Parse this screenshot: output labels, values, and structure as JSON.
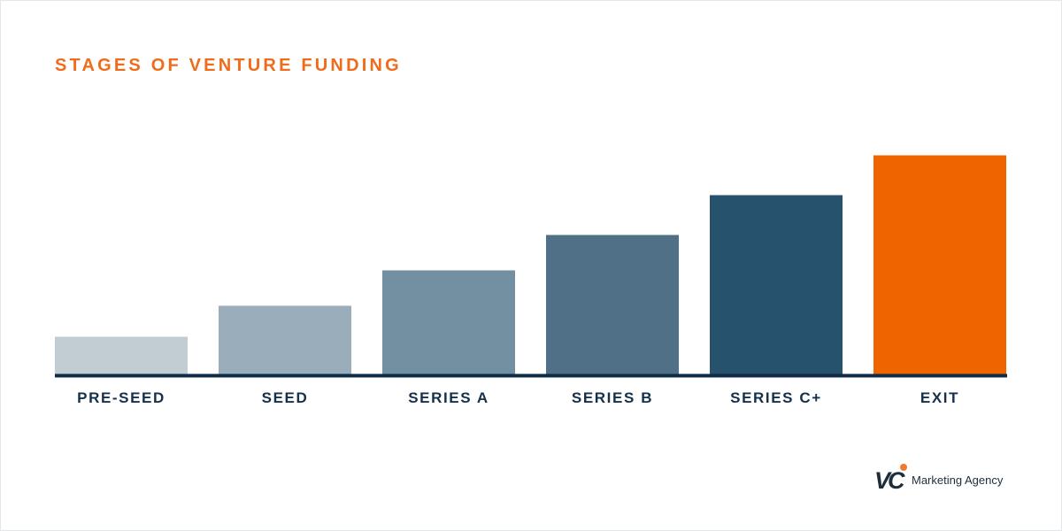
{
  "title": "STAGES OF VENTURE FUNDING",
  "colors": {
    "title": "#ee6c1c",
    "axis": "#0e2b45",
    "label": "#14304b"
  },
  "chart_data": {
    "type": "bar",
    "title": "STAGES OF VENTURE FUNDING",
    "xlabel": "",
    "ylabel": "",
    "ylim": [
      0,
      1
    ],
    "grid": false,
    "categories": [
      "PRE-SEED",
      "SEED",
      "SERIES A",
      "SERIES B",
      "SERIES C+",
      "EXIT"
    ],
    "values": [
      0.17,
      0.31,
      0.47,
      0.63,
      0.81,
      0.99
    ],
    "bar_colors": [
      "#c1ccd3",
      "#9aadba",
      "#7290a1",
      "#4f7086",
      "#26526d",
      "#f06400"
    ]
  },
  "brand": {
    "logo_letters": "VC",
    "name": "Marketing Agency",
    "dot_color": "#f07a2e",
    "mark_color": "#1d2d3a"
  }
}
